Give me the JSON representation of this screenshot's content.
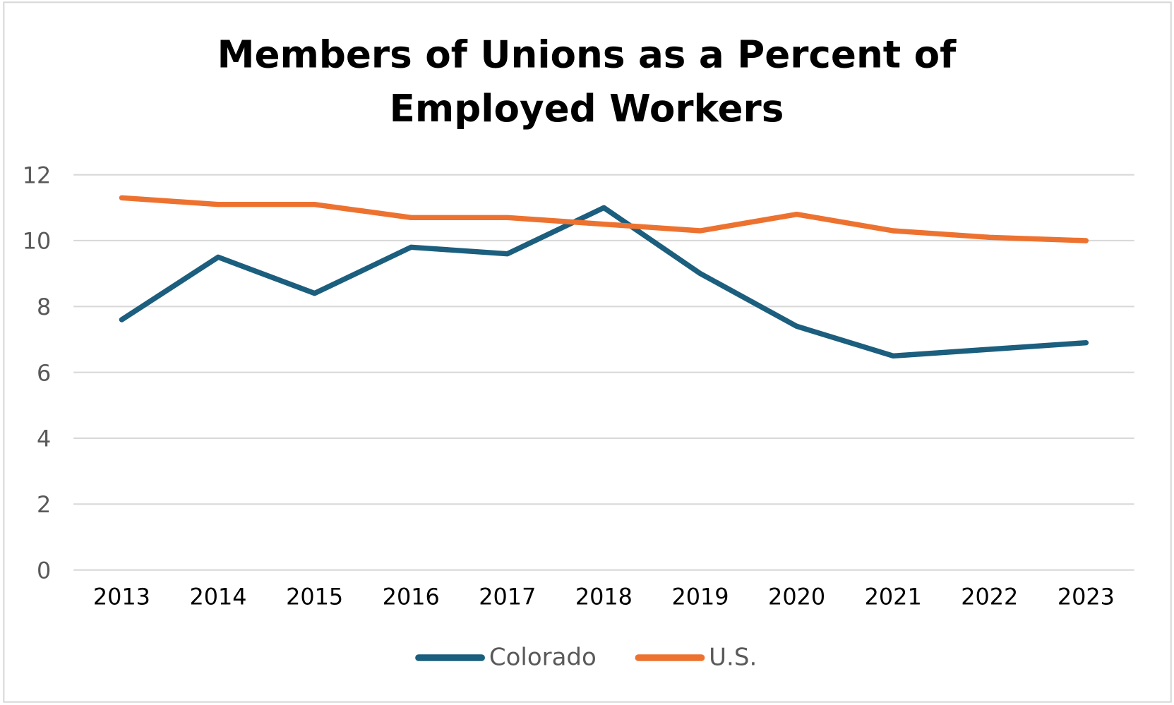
{
  "chart_data": {
    "type": "line",
    "title_lines": [
      "Members of Unions as a Percent of",
      "Employed Workers"
    ],
    "xlabel": "",
    "ylabel": "",
    "categories": [
      "2013",
      "2014",
      "2015",
      "2016",
      "2017",
      "2018",
      "2019",
      "2020",
      "2021",
      "2022",
      "2023"
    ],
    "y_ticks": [
      "0",
      "2",
      "4",
      "6",
      "8",
      "10",
      "12"
    ],
    "ylim": [
      0,
      12
    ],
    "grid": true,
    "legend_position": "bottom",
    "series": [
      {
        "name": "Colorado",
        "color": "#1b5e7e",
        "values": [
          7.6,
          9.5,
          8.4,
          9.8,
          9.6,
          11.0,
          9.0,
          7.4,
          6.5,
          6.7,
          6.9
        ]
      },
      {
        "name": "U.S.",
        "color": "#ed7230",
        "values": [
          11.3,
          11.1,
          11.1,
          10.7,
          10.7,
          10.5,
          10.3,
          10.8,
          10.3,
          10.1,
          10.0
        ]
      }
    ]
  }
}
